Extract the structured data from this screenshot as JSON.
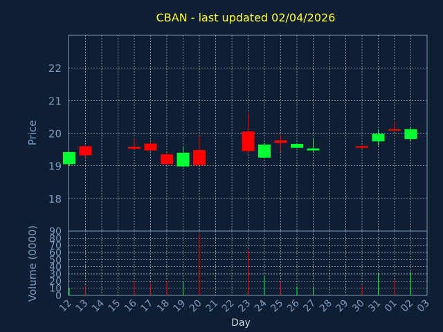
{
  "chart_data": {
    "type": "candlestick",
    "title": "CBAN - last updated 02/04/2026",
    "xlabel": "Day",
    "price_panel": {
      "ylabel": "Price",
      "ylim": [
        17,
        23
      ],
      "yticks": [
        18,
        19,
        20,
        21,
        22
      ]
    },
    "volume_panel": {
      "ylabel": "Volume (0000)",
      "ylim": [
        0,
        90
      ],
      "yticks": [
        0,
        10,
        20,
        30,
        40,
        50,
        60,
        70,
        80,
        90
      ]
    },
    "x_tick_labels": [
      "12",
      "13",
      "14",
      "15",
      "16",
      "17",
      "18",
      "19",
      "20",
      "21",
      "22",
      "23",
      "24",
      "25",
      "26",
      "27",
      "28",
      "29",
      "30",
      "31",
      "01",
      "02",
      "03"
    ],
    "candles": [
      {
        "day": "12",
        "open": 19.05,
        "high": 19.42,
        "low": 19.0,
        "close": 19.42,
        "volume": 10
      },
      {
        "day": "13",
        "open": 19.6,
        "high": 19.62,
        "low": 19.25,
        "close": 19.32,
        "volume": 13
      },
      {
        "day": "16",
        "open": 19.58,
        "high": 19.85,
        "low": 19.5,
        "close": 19.52,
        "volume": 20
      },
      {
        "day": "17",
        "open": 19.68,
        "high": 19.75,
        "low": 19.45,
        "close": 19.47,
        "volume": 17
      },
      {
        "day": "18",
        "open": 19.35,
        "high": 19.38,
        "low": 19.03,
        "close": 19.05,
        "volume": 20
      },
      {
        "day": "19",
        "open": 18.98,
        "high": 19.6,
        "low": 18.95,
        "close": 19.4,
        "volume": 19
      },
      {
        "day": "20",
        "open": 19.48,
        "high": 19.92,
        "low": 19.0,
        "close": 19.02,
        "volume": 86
      },
      {
        "day": "23",
        "open": 20.05,
        "high": 20.62,
        "low": 19.4,
        "close": 19.45,
        "volume": 63
      },
      {
        "day": "24",
        "open": 19.25,
        "high": 19.7,
        "low": 19.25,
        "close": 19.65,
        "volume": 27
      },
      {
        "day": "25",
        "open": 19.78,
        "high": 19.95,
        "low": 19.43,
        "close": 19.7,
        "volume": 20
      },
      {
        "day": "26",
        "open": 19.55,
        "high": 19.68,
        "low": 19.55,
        "close": 19.67,
        "volume": 13
      },
      {
        "day": "27",
        "open": 19.47,
        "high": 19.82,
        "low": 19.42,
        "close": 19.53,
        "volume": 11
      },
      {
        "day": "30",
        "open": 19.6,
        "high": 19.62,
        "low": 19.5,
        "close": 19.55,
        "volume": 13
      },
      {
        "day": "31",
        "open": 19.75,
        "high": 20.12,
        "low": 19.62,
        "close": 19.98,
        "volume": 30
      },
      {
        "day": "01",
        "open": 20.12,
        "high": 20.38,
        "low": 20.05,
        "close": 20.08,
        "volume": 22
      },
      {
        "day": "02",
        "open": 19.82,
        "high": 20.18,
        "low": 19.75,
        "close": 20.12,
        "volume": 33
      }
    ],
    "colors": {
      "background": "#0f1f33",
      "plot_border": "#7a9cc0",
      "grid": "#c8c8c8",
      "up": "#00ff33",
      "down": "#ff0000",
      "title": "#ffff33",
      "axis_text": "#7a9cc0"
    },
    "grid": true
  }
}
